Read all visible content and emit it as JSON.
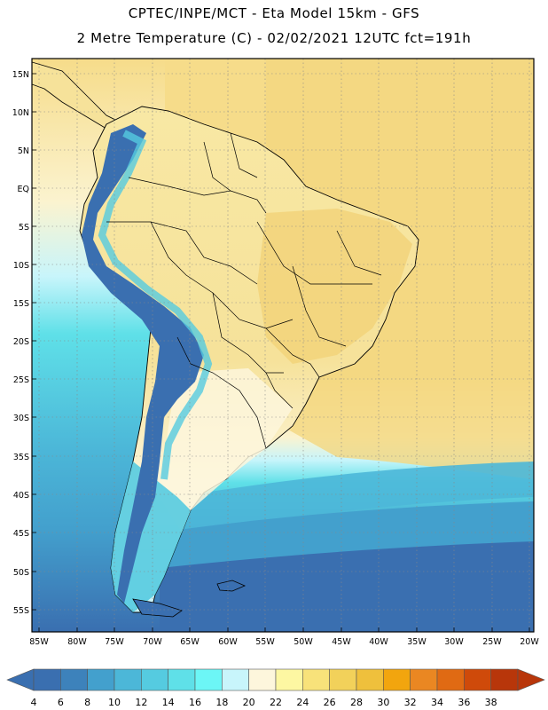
{
  "header": {
    "line1": "CPTEC/INPE/MCT -  Eta Model 15km - GFS",
    "line2": "2 Metre Temperature (C) - 02/02/2021 12UTC fct=191h"
  },
  "lat_labels": [
    "15N",
    "10N",
    "5N",
    "EQ",
    "5S",
    "10S",
    "15S",
    "20S",
    "25S",
    "30S",
    "35S",
    "40S",
    "45S",
    "50S",
    "55S"
  ],
  "lon_labels": [
    "85W",
    "80W",
    "75W",
    "70W",
    "65W",
    "60W",
    "55W",
    "50W",
    "45W",
    "40W",
    "35W",
    "30W",
    "25W",
    "20W"
  ],
  "colorbar": {
    "labels": [
      "4",
      "6",
      "8",
      "10",
      "12",
      "14",
      "16",
      "18",
      "20",
      "22",
      "24",
      "26",
      "28",
      "30",
      "32",
      "34",
      "36",
      "38"
    ],
    "colors": [
      "#3a6fb0",
      "#3d82bb",
      "#43a0cd",
      "#4cb7d8",
      "#55cbe0",
      "#5fe0e8",
      "#6cf6f6",
      "#c8f5fb",
      "#fdf6dc",
      "#fdf7a2",
      "#f8e27a",
      "#f2d15a",
      "#efc03c",
      "#f2a50e",
      "#ea8722",
      "#e06a13",
      "#cf4a0a",
      "#b8360a"
    ]
  },
  "map": {
    "ocean_colors": {
      "warm": "#f6dc8a",
      "mid": "#fbf3cf",
      "cool": "#c8f5fb",
      "cold": "#5fe0e8",
      "colder": "#43a0cd",
      "coldest": "#3a6fb0"
    },
    "land_colors": {
      "amazon": "#f7e7a2",
      "northeast": "#f2d47a",
      "andes_high": "#3a6fb0",
      "andes_mid": "#55cbe0",
      "south": "#fdf6dc"
    }
  }
}
